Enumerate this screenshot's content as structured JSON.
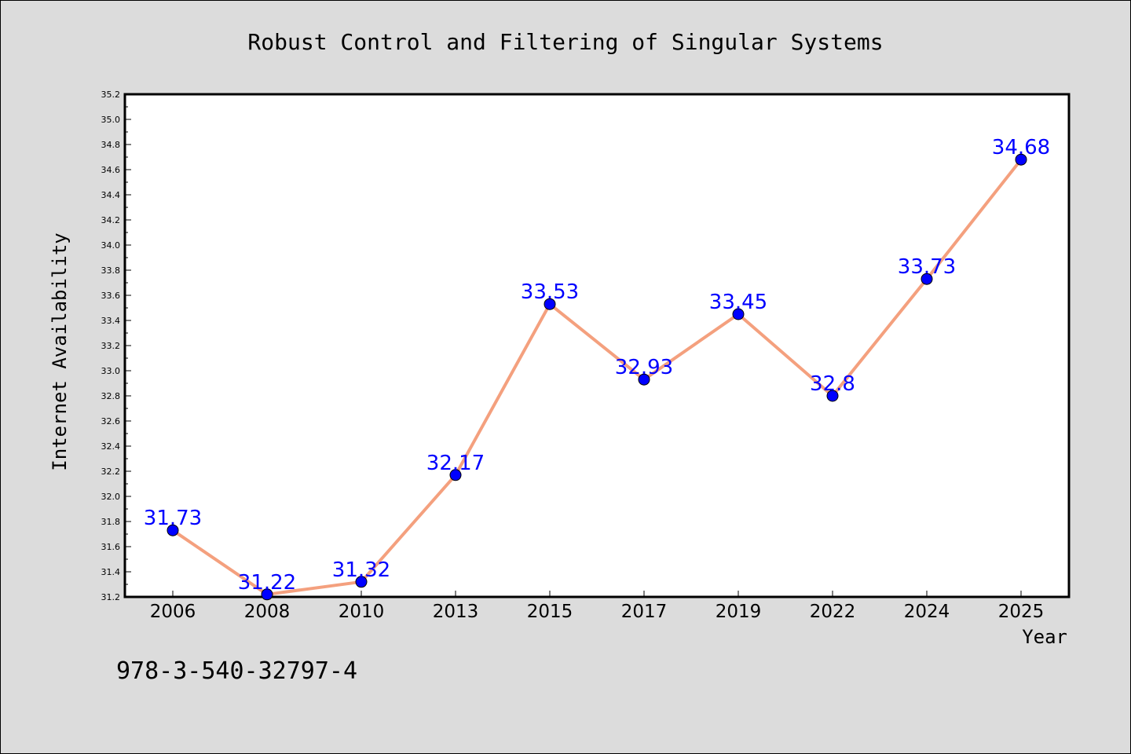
{
  "chart_data": {
    "type": "line",
    "title": "Robust Control and Filtering of Singular Systems",
    "xlabel": "Year",
    "ylabel": "Internet Availability",
    "categories": [
      "2006",
      "2008",
      "2010",
      "2013",
      "2015",
      "2017",
      "2019",
      "2022",
      "2024",
      "2025"
    ],
    "series": [
      {
        "values": [
          31.73,
          31.22,
          31.32,
          32.17,
          33.53,
          32.93,
          33.45,
          32.8,
          33.73,
          34.68
        ],
        "data_labels": [
          "31.73",
          "31.22",
          "31.32",
          "32.17",
          "33.53",
          "32.93",
          "33.45",
          "32.8",
          "33.73",
          "34.68"
        ]
      }
    ],
    "ylim": [
      31.2,
      35.2
    ],
    "yticks": [
      "31.2",
      "31.4",
      "31.6",
      "31.8",
      "32.0",
      "32.2",
      "32.4",
      "32.6",
      "32.8",
      "33.0",
      "33.2",
      "33.4",
      "33.6",
      "33.8",
      "34.0",
      "34.2",
      "34.4",
      "34.6",
      "34.8",
      "35.0",
      "35.2"
    ],
    "grid": false,
    "line_color": "#f4a07e",
    "marker_color": "#0000ff",
    "label_color": "#0000ff",
    "plot_background": "#ffffff",
    "page_background": "#dcdcdc"
  },
  "footer_text": "978-3-540-32797-4"
}
